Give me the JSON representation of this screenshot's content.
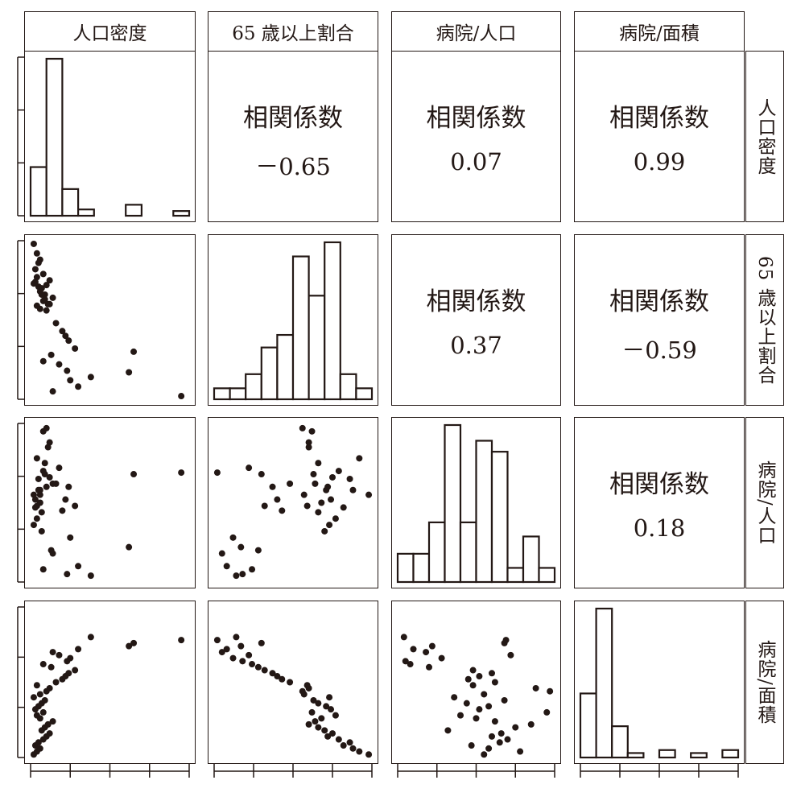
{
  "chart_data": {
    "type": "scatter",
    "variables": [
      "人口密度",
      "65 歳以上割合",
      "病院/人口",
      "病院/面積"
    ],
    "correlation_label": "相関係数",
    "correlations": [
      {
        "row": 0,
        "col": 1,
        "text": "－0.65"
      },
      {
        "row": 0,
        "col": 2,
        "text": "0.07"
      },
      {
        "row": 0,
        "col": 3,
        "text": "0.99"
      },
      {
        "row": 1,
        "col": 2,
        "text": "0.37"
      },
      {
        "row": 1,
        "col": 3,
        "text": "－0.59"
      },
      {
        "row": 2,
        "col": 3,
        "text": "0.18"
      }
    ],
    "histograms": [
      [
        0.31,
        1.0,
        0.17,
        0.04,
        0,
        0,
        0.07,
        0,
        0,
        0.03
      ],
      [
        0.07,
        0.07,
        0.16,
        0.33,
        0.41,
        0.91,
        0.66,
        1.0,
        0.16,
        0.07
      ],
      [
        0.18,
        0.18,
        0.38,
        1.0,
        0.38,
        0.9,
        0.83,
        0.09,
        0.29,
        0.09
      ],
      [
        0.43,
        1.0,
        0.21,
        0.03,
        0,
        0.05,
        0,
        0.03,
        0,
        0.05
      ]
    ],
    "points": [
      [
        0.02,
        0.98,
        0.55,
        0.02
      ],
      [
        0.04,
        0.92,
        0.78,
        0.04
      ],
      [
        0.06,
        0.88,
        0.58,
        0.06
      ],
      [
        0.03,
        0.82,
        0.47,
        0.08
      ],
      [
        0.05,
        0.86,
        0.65,
        0.1
      ],
      [
        0.08,
        0.79,
        0.7,
        0.12
      ],
      [
        0.1,
        0.72,
        0.6,
        0.14
      ],
      [
        0.12,
        0.75,
        0.66,
        0.16
      ],
      [
        0.07,
        0.7,
        0.32,
        0.18
      ],
      [
        0.09,
        0.66,
        0.75,
        0.2
      ],
      [
        0.11,
        0.6,
        0.85,
        0.22
      ],
      [
        0.14,
        0.64,
        0.62,
        0.24
      ],
      [
        0.06,
        0.68,
        0.5,
        0.26
      ],
      [
        0.04,
        0.77,
        0.4,
        0.28
      ],
      [
        0.08,
        0.62,
        0.95,
        0.3
      ],
      [
        0.03,
        0.74,
        0.52,
        0.32
      ],
      [
        0.05,
        0.71,
        0.58,
        0.34
      ],
      [
        0.07,
        0.66,
        0.44,
        0.36
      ],
      [
        0.09,
        0.63,
        0.68,
        0.38
      ],
      [
        0.02,
        0.73,
        0.36,
        0.4
      ],
      [
        0.06,
        0.57,
        0.55,
        0.42
      ],
      [
        0.1,
        0.56,
        0.97,
        0.44
      ],
      [
        0.12,
        0.6,
        0.88,
        0.46
      ],
      [
        0.04,
        0.59,
        0.48,
        0.48
      ],
      [
        0.16,
        0.48,
        0.62,
        0.5
      ],
      [
        0.2,
        0.43,
        0.45,
        0.52
      ],
      [
        0.22,
        0.4,
        0.52,
        0.54
      ],
      [
        0.24,
        0.37,
        0.6,
        0.56
      ],
      [
        0.28,
        0.32,
        0.48,
        0.58
      ],
      [
        0.13,
        0.28,
        0.2,
        0.6
      ],
      [
        0.08,
        0.24,
        0.08,
        0.62
      ],
      [
        0.23,
        0.18,
        0.05,
        0.64
      ],
      [
        0.25,
        0.12,
        0.28,
        0.66
      ],
      [
        0.18,
        0.22,
        0.72,
        0.68
      ],
      [
        0.14,
        0.05,
        0.18,
        0.7
      ],
      [
        0.3,
        0.08,
        0.1,
        0.72
      ],
      [
        0.62,
        0.17,
        0.22,
        0.74
      ],
      [
        0.65,
        0.3,
        0.68,
        0.76
      ],
      [
        0.95,
        0.02,
        0.69,
        0.78
      ],
      [
        0.38,
        0.14,
        0.04,
        0.8
      ]
    ]
  }
}
